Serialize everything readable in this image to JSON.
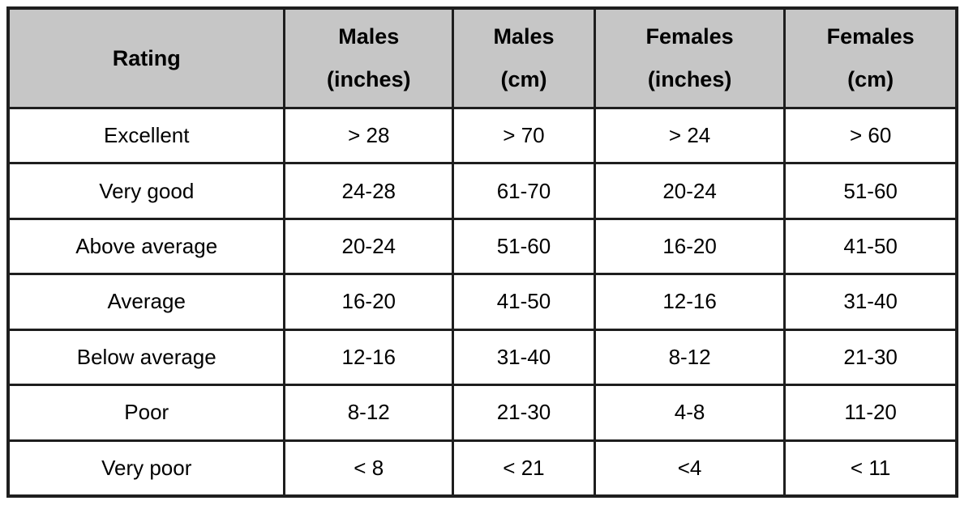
{
  "table": {
    "headers": [
      {
        "line1": "Rating",
        "line2": ""
      },
      {
        "line1": "Males",
        "line2": "(inches)"
      },
      {
        "line1": "Males",
        "line2": "(cm)"
      },
      {
        "line1": "Females",
        "line2": "(inches)"
      },
      {
        "line1": "Females",
        "line2": "(cm)"
      }
    ],
    "rows": [
      [
        "Excellent",
        "> 28",
        "> 70",
        "> 24",
        "> 60"
      ],
      [
        "Very good",
        "24-28",
        "61-70",
        "20-24",
        "51-60"
      ],
      [
        "Above average",
        "20-24",
        "51-60",
        "16-20",
        "41-50"
      ],
      [
        "Average",
        "16-20",
        "41-50",
        "12-16",
        "31-40"
      ],
      [
        "Below average",
        "12-16",
        "31-40",
        "8-12",
        "21-30"
      ],
      [
        "Poor",
        "8-12",
        "21-30",
        "4-8",
        "11-20"
      ],
      [
        "Very poor",
        "< 8",
        "< 21",
        "<4",
        "< 11"
      ]
    ]
  },
  "colors": {
    "header_bg": "#c6c6c6",
    "border": "#1e1e1e",
    "text": "#000000",
    "row_bg": "#ffffff"
  },
  "chart_data": {
    "type": "table",
    "columns": [
      "Rating",
      "Males (inches)",
      "Males (cm)",
      "Females (inches)",
      "Females (cm)"
    ],
    "rows": [
      [
        "Excellent",
        "> 28",
        "> 70",
        "> 24",
        "> 60"
      ],
      [
        "Very good",
        "24-28",
        "61-70",
        "20-24",
        "51-60"
      ],
      [
        "Above average",
        "20-24",
        "51-60",
        "16-20",
        "41-50"
      ],
      [
        "Average",
        "16-20",
        "41-50",
        "12-16",
        "31-40"
      ],
      [
        "Below average",
        "12-16",
        "31-40",
        "8-12",
        "21-30"
      ],
      [
        "Poor",
        "8-12",
        "21-30",
        "4-8",
        "11-20"
      ],
      [
        "Very poor",
        "< 8",
        "< 21",
        "<4",
        "< 11"
      ]
    ]
  }
}
